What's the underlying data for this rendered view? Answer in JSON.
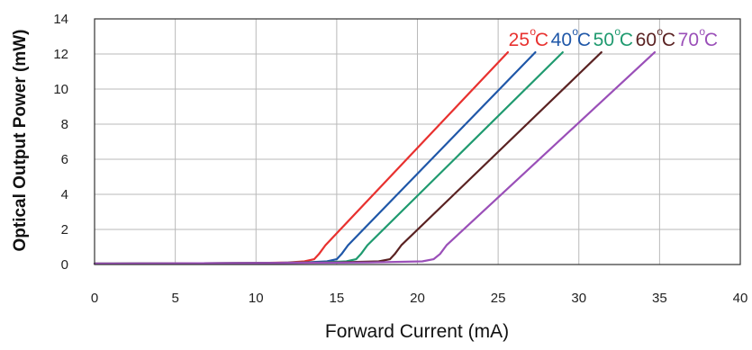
{
  "chart_data": {
    "type": "line",
    "title": "",
    "xlabel": "Forward Current (mA)",
    "ylabel": "Optical Output Power (mW)",
    "xlim": [
      0,
      40
    ],
    "ylim": [
      0,
      14
    ],
    "xticks": [
      0,
      5,
      10,
      15,
      20,
      25,
      30,
      35,
      40
    ],
    "yticks": [
      0,
      2,
      4,
      6,
      8,
      10,
      12,
      14
    ],
    "grid": true,
    "legend": "top-right, inline colored labels",
    "series": [
      {
        "name": "25°C",
        "color": "#e8312f",
        "x": [
          0,
          10,
          12,
          13,
          13.6,
          13.9,
          14.3,
          25.6
        ],
        "y": [
          0.05,
          0.08,
          0.12,
          0.18,
          0.3,
          0.6,
          1.1,
          12.1
        ]
      },
      {
        "name": "40°C",
        "color": "#1f57a8",
        "x": [
          0,
          10,
          13,
          14.4,
          15.0,
          15.3,
          15.7,
          27.3
        ],
        "y": [
          0.05,
          0.08,
          0.12,
          0.18,
          0.3,
          0.6,
          1.1,
          12.1
        ]
      },
      {
        "name": "50°C",
        "color": "#1f9a6f",
        "x": [
          0,
          10,
          14,
          15.6,
          16.2,
          16.5,
          16.9,
          29.0
        ],
        "y": [
          0.05,
          0.08,
          0.12,
          0.18,
          0.3,
          0.6,
          1.1,
          12.1
        ]
      },
      {
        "name": "60°C",
        "color": "#5a2222",
        "x": [
          0,
          10,
          15,
          17.6,
          18.3,
          18.6,
          19.0,
          31.4
        ],
        "y": [
          0.05,
          0.08,
          0.12,
          0.18,
          0.3,
          0.6,
          1.1,
          12.1
        ]
      },
      {
        "name": "70°C",
        "color": "#9a4fb8",
        "x": [
          0,
          10,
          17,
          20.3,
          21.0,
          21.4,
          21.8,
          34.7
        ],
        "y": [
          0.05,
          0.08,
          0.12,
          0.18,
          0.3,
          0.6,
          1.1,
          12.1
        ]
      }
    ],
    "legend_entries": [
      {
        "value": "25",
        "degree": "o",
        "unit": "C",
        "color": "#e8312f"
      },
      {
        "value": "40",
        "degree": "o",
        "unit": "C",
        "color": "#1f57a8"
      },
      {
        "value": "50",
        "degree": "o",
        "unit": "C",
        "color": "#1f9a6f"
      },
      {
        "value": "60",
        "degree": "o",
        "unit": "C",
        "color": "#5a2222"
      },
      {
        "value": "70",
        "degree": "o",
        "unit": "C",
        "color": "#9a4fb8"
      }
    ]
  }
}
